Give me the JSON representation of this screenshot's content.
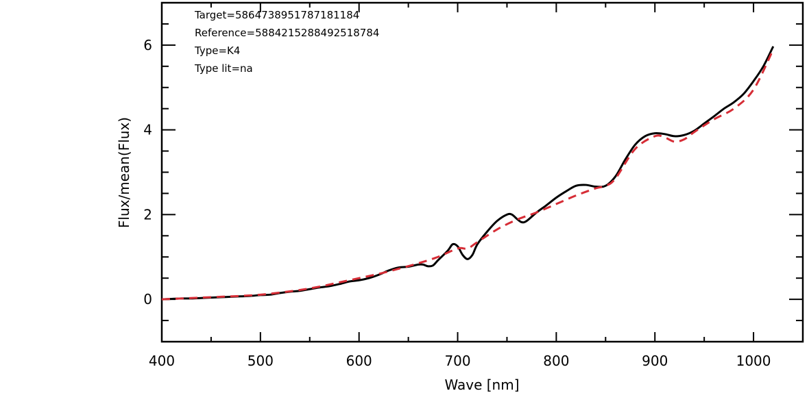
{
  "chart_data": {
    "type": "line",
    "xlabel": "Wave [nm]",
    "ylabel": "Flux/mean(Flux)",
    "xlim": [
      400,
      1050
    ],
    "ylim": [
      -1,
      7
    ],
    "x_ticks": [
      400,
      500,
      600,
      700,
      800,
      900,
      1000
    ],
    "y_ticks": [
      0,
      2,
      4,
      6
    ],
    "annotations": [
      "Target=5864738951787181184",
      "Reference=5884215288492518784",
      "Type=K4",
      "Type lit=na"
    ],
    "grid": false,
    "series": [
      {
        "color": "#000000",
        "style": "solid",
        "x": [
          400,
          410,
          420,
          430,
          440,
          450,
          460,
          470,
          480,
          490,
          500,
          510,
          520,
          530,
          540,
          550,
          560,
          570,
          580,
          590,
          600,
          610,
          620,
          630,
          640,
          650,
          660,
          665,
          670,
          675,
          680,
          690,
          695,
          700,
          705,
          710,
          715,
          720,
          730,
          740,
          750,
          755,
          760,
          765,
          770,
          780,
          790,
          800,
          810,
          820,
          830,
          840,
          850,
          860,
          870,
          880,
          890,
          900,
          910,
          920,
          930,
          940,
          950,
          960,
          970,
          980,
          990,
          1000,
          1010,
          1020
        ],
        "y": [
          0.0,
          0.01,
          0.02,
          0.02,
          0.03,
          0.04,
          0.05,
          0.06,
          0.07,
          0.08,
          0.1,
          0.11,
          0.15,
          0.18,
          0.2,
          0.24,
          0.28,
          0.31,
          0.36,
          0.42,
          0.45,
          0.5,
          0.58,
          0.68,
          0.75,
          0.77,
          0.82,
          0.82,
          0.78,
          0.8,
          0.92,
          1.15,
          1.3,
          1.25,
          1.05,
          0.95,
          1.05,
          1.3,
          1.6,
          1.85,
          2.0,
          2.0,
          1.9,
          1.82,
          1.85,
          2.05,
          2.22,
          2.4,
          2.55,
          2.68,
          2.7,
          2.66,
          2.68,
          2.9,
          3.3,
          3.65,
          3.85,
          3.92,
          3.9,
          3.85,
          3.88,
          3.98,
          4.15,
          4.32,
          4.5,
          4.65,
          4.85,
          5.15,
          5.5,
          5.97
        ]
      },
      {
        "color": "#d62d36",
        "style": "dashed",
        "x": [
          400,
          420,
          440,
          460,
          480,
          500,
          520,
          540,
          560,
          580,
          600,
          620,
          640,
          660,
          680,
          700,
          710,
          720,
          740,
          760,
          780,
          800,
          820,
          840,
          850,
          860,
          880,
          900,
          910,
          920,
          930,
          940,
          960,
          980,
          1000,
          1020
        ],
        "y": [
          0.0,
          0.02,
          0.04,
          0.06,
          0.08,
          0.11,
          0.16,
          0.22,
          0.3,
          0.4,
          0.5,
          0.6,
          0.72,
          0.85,
          1.0,
          1.2,
          1.2,
          1.35,
          1.65,
          1.88,
          2.05,
          2.25,
          2.45,
          2.62,
          2.68,
          2.85,
          3.55,
          3.85,
          3.82,
          3.72,
          3.78,
          3.95,
          4.25,
          4.5,
          4.95,
          5.9
        ]
      }
    ]
  }
}
